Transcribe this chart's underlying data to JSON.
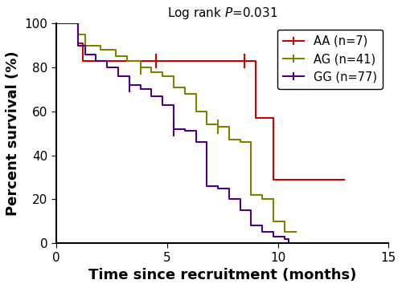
{
  "title_text": "Log rank ",
  "title_p": "$P$=0.031",
  "xlabel": "Time since recruitment (months)",
  "ylabel": "Percent survival (%)",
  "xlim": [
    0,
    15
  ],
  "ylim": [
    0,
    100
  ],
  "xticks": [
    0,
    5,
    10,
    15
  ],
  "yticks": [
    0,
    20,
    40,
    60,
    80,
    100
  ],
  "AA": {
    "label": "AA (n=7)",
    "color": "#cc0000",
    "times": [
      0,
      1.0,
      1.0,
      1.2,
      1.2,
      9.0,
      9.0,
      9.8,
      9.8,
      10.5,
      10.5,
      13.0
    ],
    "surv": [
      100,
      100,
      91,
      91,
      83,
      83,
      57,
      57,
      29,
      29,
      29,
      29
    ],
    "censors_t": [
      4.5,
      8.5
    ],
    "censors_s": [
      83,
      83
    ]
  },
  "AG": {
    "label": "AG (n=41)",
    "color": "#808000",
    "times": [
      0,
      1.0,
      1.0,
      1.3,
      1.3,
      2.0,
      2.0,
      2.7,
      2.7,
      3.2,
      3.2,
      3.8,
      3.8,
      4.3,
      4.3,
      4.8,
      4.8,
      5.3,
      5.3,
      5.8,
      5.8,
      6.3,
      6.3,
      6.8,
      6.8,
      7.3,
      7.3,
      7.8,
      7.8,
      8.3,
      8.3,
      8.8,
      8.8,
      9.3,
      9.3,
      9.8,
      9.8,
      10.3,
      10.3,
      10.8,
      10.8
    ],
    "surv": [
      100,
      100,
      95,
      95,
      90,
      90,
      88,
      88,
      85,
      85,
      83,
      83,
      80,
      80,
      78,
      78,
      76,
      76,
      71,
      71,
      68,
      68,
      60,
      60,
      54,
      54,
      53,
      53,
      47,
      47,
      46,
      46,
      22,
      22,
      20,
      20,
      10,
      10,
      5,
      5,
      5
    ],
    "censors_t": [
      3.8,
      7.3
    ],
    "censors_s": [
      80,
      53
    ]
  },
  "GG": {
    "label": "GG (n=77)",
    "color": "#4b0082",
    "times": [
      0,
      1.0,
      1.0,
      1.3,
      1.3,
      1.8,
      1.8,
      2.3,
      2.3,
      2.8,
      2.8,
      3.3,
      3.3,
      3.8,
      3.8,
      4.3,
      4.3,
      4.8,
      4.8,
      5.3,
      5.3,
      5.8,
      5.8,
      6.3,
      6.3,
      6.8,
      6.8,
      7.3,
      7.3,
      7.8,
      7.8,
      8.3,
      8.3,
      8.8,
      8.8,
      9.3,
      9.3,
      9.8,
      9.8,
      10.3,
      10.3,
      10.5,
      10.5
    ],
    "surv": [
      100,
      100,
      90,
      90,
      86,
      86,
      83,
      83,
      80,
      80,
      76,
      76,
      72,
      72,
      70,
      70,
      67,
      67,
      63,
      63,
      52,
      52,
      51,
      51,
      46,
      46,
      26,
      26,
      25,
      25,
      20,
      20,
      15,
      15,
      8,
      8,
      5,
      5,
      3,
      3,
      2,
      2,
      0
    ],
    "censors_t": [
      3.3,
      5.3
    ],
    "censors_s": [
      72,
      52
    ]
  },
  "background_color": "#ffffff",
  "title_fontsize": 11,
  "label_fontsize": 13,
  "tick_fontsize": 11,
  "legend_fontsize": 10.5
}
